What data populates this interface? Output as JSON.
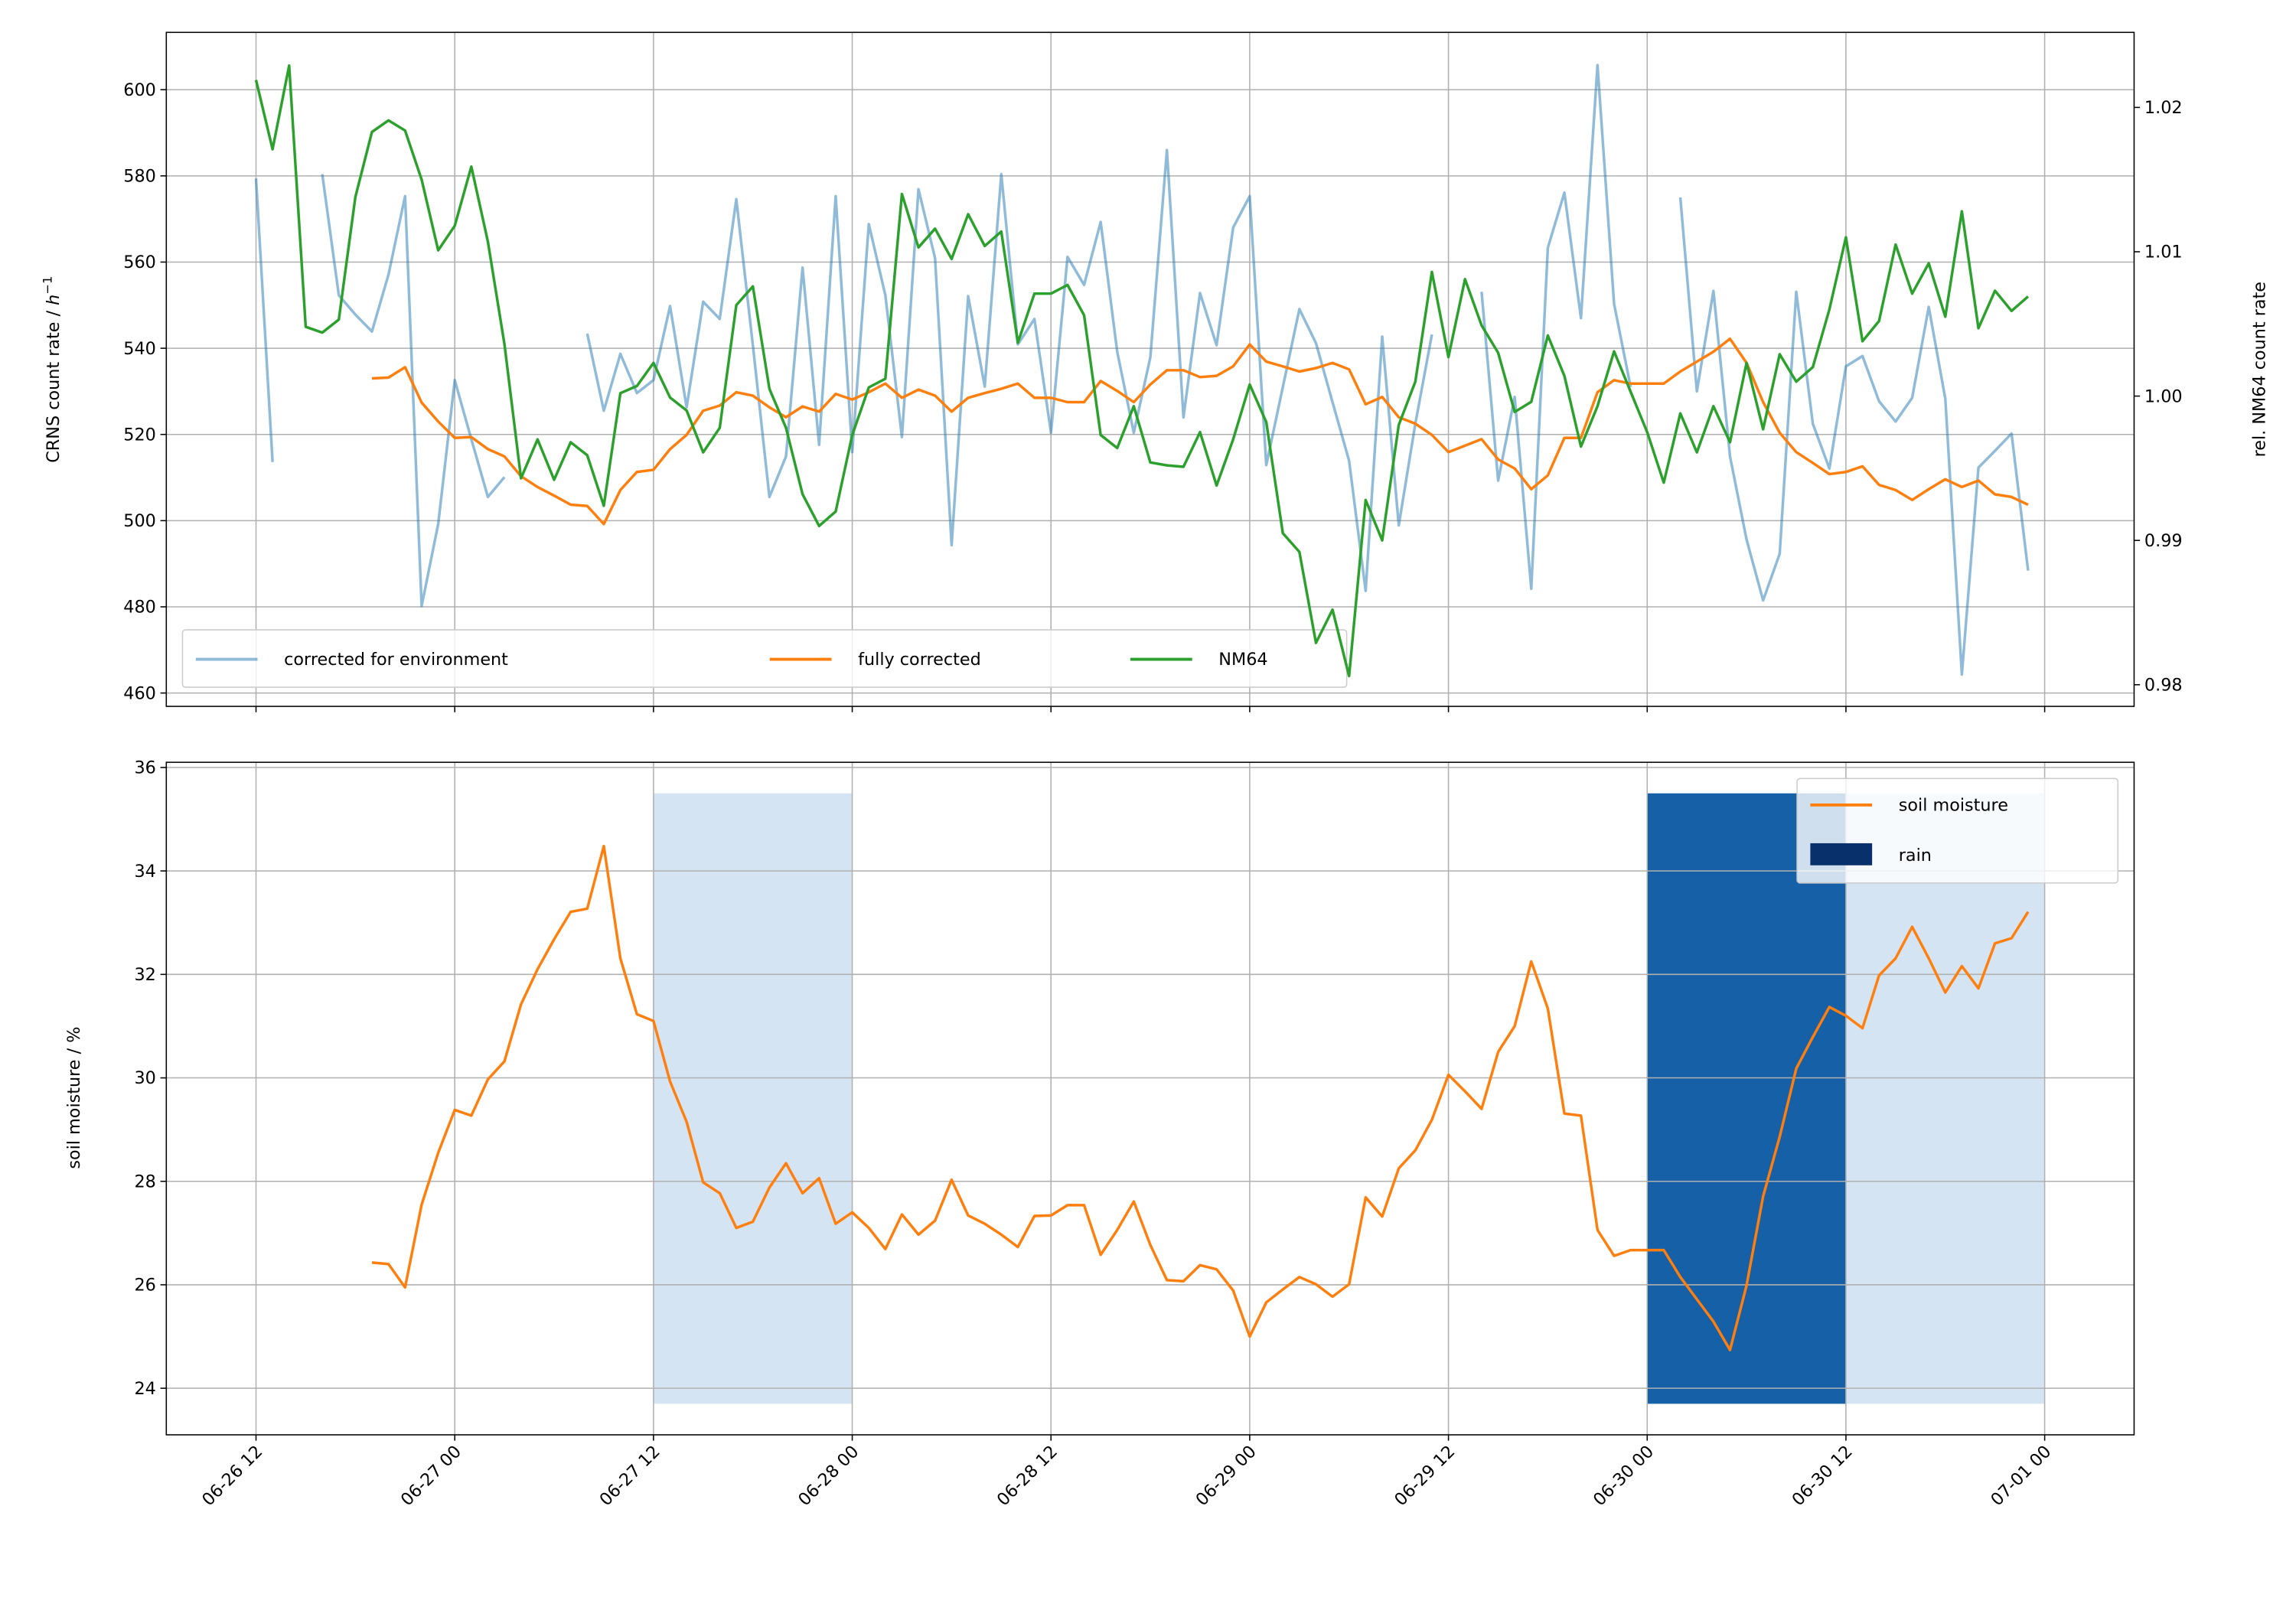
{
  "chart_data": [
    {
      "type": "line",
      "panel": "top",
      "ylabel_text": "CRNS count rate / ",
      "ylabel_unit": "h",
      "ylabel_exp": "−1",
      "y2label": "rel. NM64 count rate",
      "xlim": [
        "06-26 06:35",
        "07-01 05:24"
      ],
      "ylim": [
        456.9,
        613.3
      ],
      "y2lim": [
        0.9785,
        1.0252
      ],
      "grid": true,
      "legend_placement": "lower-left",
      "xticks": [
        "06-26 12",
        "06-27 00",
        "06-27 12",
        "06-28 00",
        "06-28 12",
        "06-29 00",
        "06-29 12",
        "06-30 00",
        "06-30 12",
        "07-01 00"
      ],
      "yticks": [
        460,
        480,
        500,
        520,
        540,
        560,
        580,
        600
      ],
      "y2ticks": [
        "0.98",
        "0.99",
        "1.00",
        "1.01",
        "1.02"
      ],
      "x": [
        "06-26 12:00",
        "06-26 13:00",
        "06-26 14:00",
        "06-26 15:00",
        "06-26 16:00",
        "06-26 17:00",
        "06-26 18:00",
        "06-26 19:00",
        "06-26 20:00",
        "06-26 21:00",
        "06-26 22:00",
        "06-26 23:00",
        "06-27 00:00",
        "06-27 01:00",
        "06-27 02:00",
        "06-27 03:00",
        "06-27 04:00",
        "06-27 05:00",
        "06-27 06:00",
        "06-27 07:00",
        "06-27 08:00",
        "06-27 09:00",
        "06-27 10:00",
        "06-27 11:00",
        "06-27 12:00",
        "06-27 13:00",
        "06-27 14:00",
        "06-27 15:00",
        "06-27 16:00",
        "06-27 17:00",
        "06-27 18:00",
        "06-27 19:00",
        "06-27 20:00",
        "06-27 21:00",
        "06-27 22:00",
        "06-27 23:00",
        "06-28 00:00",
        "06-28 01:00",
        "06-28 02:00",
        "06-28 03:00",
        "06-28 04:00",
        "06-28 05:00",
        "06-28 06:00",
        "06-28 07:00",
        "06-28 08:00",
        "06-28 09:00",
        "06-28 10:00",
        "06-28 11:00",
        "06-28 12:00",
        "06-28 13:00",
        "06-28 14:00",
        "06-28 15:00",
        "06-28 16:00",
        "06-28 17:00",
        "06-28 18:00",
        "06-28 19:00",
        "06-28 20:00",
        "06-28 21:00",
        "06-28 22:00",
        "06-28 23:00",
        "06-29 00:00",
        "06-29 01:00",
        "06-29 02:00",
        "06-29 03:00",
        "06-29 04:00",
        "06-29 05:00",
        "06-29 06:00",
        "06-29 07:00",
        "06-29 08:00",
        "06-29 09:00",
        "06-29 10:00",
        "06-29 11:00",
        "06-29 12:00",
        "06-29 13:00",
        "06-29 14:00",
        "06-29 15:00",
        "06-29 16:00",
        "06-29 17:00",
        "06-29 18:00",
        "06-29 19:00",
        "06-29 20:00",
        "06-29 21:00",
        "06-29 22:00",
        "06-29 23:00",
        "06-30 00:00",
        "06-30 01:00",
        "06-30 02:00",
        "06-30 03:00",
        "06-30 04:00",
        "06-30 05:00",
        "06-30 06:00",
        "06-30 07:00",
        "06-30 08:00",
        "06-30 09:00",
        "06-30 10:00",
        "06-30 11:00",
        "06-30 12:00",
        "06-30 13:00",
        "06-30 14:00",
        "06-30 15:00",
        "06-30 16:00",
        "06-30 17:00",
        "06-30 18:00",
        "06-30 19:00",
        "06-30 20:00",
        "06-30 21:00",
        "06-30 22:00",
        "06-30 23:00"
      ],
      "series": [
        {
          "name": "corrected for environment",
          "axis": "left",
          "color": "#1f77b4",
          "opacity": 0.5,
          "values": [
            579.4,
            513.6,
            null,
            null,
            580.4,
            552.3,
            547.8,
            543.9,
            557.1,
            575.3,
            480.2,
            499.2,
            532.6,
            518.9,
            505.5,
            510.1,
            null,
            null,
            null,
            null,
            543.4,
            525.5,
            538.7,
            529.6,
            532.6,
            549.8,
            526.3,
            550.8,
            546.8,
            574.6,
            540.7,
            505.5,
            514.9,
            558.7,
            517.6,
            575.3,
            515.9,
            568.8,
            552.3,
            519.4,
            576.9,
            560.9,
            494.3,
            552.1,
            531.1,
            580.4,
            540.9,
            546.8,
            520.4,
            561.2,
            554.7,
            569.3,
            539.2,
            520.4,
            537.9,
            586.0,
            524.0,
            552.8,
            540.7,
            568.0,
            575.3,
            512.9,
            531.0,
            549.1,
            541.2,
            527.5,
            513.9,
            483.7,
            542.7,
            498.9,
            522.5,
            543.2,
            null,
            null,
            553.1,
            509.3,
            528.7,
            484.2,
            563.3,
            576.1,
            547.0,
            605.7,
            550.3,
            531.0,
            null,
            null,
            575.0,
            530.0,
            553.3,
            514.9,
            495.6,
            481.5,
            492.3,
            553.1,
            522.5,
            512.1,
            535.8,
            538.2,
            527.7,
            523.0,
            528.5,
            549.6,
            528.3,
            464.3,
            512.3,
            516.2,
            520.2,
            488.4
          ]
        },
        {
          "name": "fully corrected",
          "axis": "left",
          "color": "#ff7f0e",
          "opacity": 1,
          "values": [
            null,
            null,
            null,
            null,
            null,
            null,
            null,
            533.0,
            533.2,
            535.6,
            527.4,
            523.0,
            519.2,
            519.4,
            516.6,
            514.9,
            510.3,
            507.8,
            505.8,
            503.7,
            503.4,
            499.2,
            507.1,
            511.3,
            511.8,
            516.6,
            519.9,
            525.5,
            526.7,
            529.8,
            529.0,
            526.3,
            524.0,
            526.5,
            525.3,
            529.4,
            528.1,
            529.8,
            531.8,
            528.5,
            530.4,
            529.0,
            525.3,
            528.5,
            529.6,
            530.6,
            531.8,
            528.5,
            528.5,
            527.5,
            527.5,
            532.4,
            530.1,
            527.5,
            531.6,
            534.9,
            534.9,
            533.3,
            533.6,
            535.8,
            540.9,
            536.9,
            535.8,
            534.6,
            535.4,
            536.6,
            535.1,
            527.0,
            528.7,
            524.0,
            522.5,
            519.9,
            515.9,
            517.4,
            518.9,
            514.2,
            512.1,
            507.3,
            510.5,
            519.2,
            519.2,
            529.8,
            532.6,
            531.8,
            531.8,
            531.8,
            534.6,
            536.9,
            539.2,
            542.2,
            536.6,
            527.5,
            520.4,
            515.9,
            513.4,
            510.8,
            511.3,
            512.6,
            508.3,
            507.1,
            504.8,
            507.3,
            509.6,
            507.8,
            509.3,
            506.1,
            505.5,
            503.7
          ]
        },
        {
          "name": "NM64",
          "axis": "right",
          "color": "#2ca02c",
          "opacity": 1,
          "values": [
            1.0219,
            1.0171,
            1.0229,
            1.0048,
            1.0044,
            1.0053,
            1.0138,
            1.0183,
            1.0191,
            1.0184,
            1.015,
            1.0101,
            1.0118,
            1.0159,
            1.0107,
            1.0036,
            0.9943,
            0.997,
            0.9942,
            0.9968,
            0.9959,
            0.9924,
            1.0002,
            1.0007,
            1.0023,
            0.9999,
            0.999,
            0.9961,
            0.9978,
            1.0063,
            1.0076,
            1.0005,
            0.9978,
            0.9932,
            0.991,
            0.992,
            0.9973,
            1.0006,
            1.0012,
            1.014,
            1.0103,
            1.0116,
            1.0095,
            1.0126,
            1.0104,
            1.0114,
            1.0037,
            1.0071,
            1.0071,
            1.0077,
            1.0056,
            0.9973,
            0.9964,
            0.9993,
            0.9954,
            0.9952,
            0.9951,
            0.9975,
            0.9938,
            0.997,
            1.0008,
            0.9982,
            0.9905,
            0.9892,
            0.9829,
            0.9852,
            0.9806,
            0.9928,
            0.99,
            0.998,
            1.001,
            1.0086,
            1.0027,
            1.0081,
            1.0049,
            1.003,
            0.9989,
            0.9996,
            1.0042,
            1.0014,
            0.9965,
            0.9993,
            1.0031,
            1.0003,
            0.9975,
            0.994,
            0.9988,
            0.9961,
            0.9993,
            0.9968,
            1.0023,
            0.9977,
            1.0029,
            1.001,
            1.002,
            1.006,
            1.011,
            1.0038,
            1.0052,
            1.0105,
            1.0071,
            1.0092,
            1.0055,
            1.0128,
            1.0047,
            1.0073,
            1.0059,
            1.0069
          ]
        }
      ]
    },
    {
      "type": "line",
      "panel": "bottom",
      "ylabel": "soil moisture / %",
      "xlim": [
        "06-26 06:35",
        "07-01 05:24"
      ],
      "ylim": [
        23.1,
        36.1
      ],
      "grid": true,
      "legend_placement": "upper-right",
      "xticks": [
        "06-26 12",
        "06-27 00",
        "06-27 12",
        "06-28 00",
        "06-28 12",
        "06-29 00",
        "06-29 12",
        "06-30 00",
        "06-30 12",
        "07-01 00"
      ],
      "yticks": [
        24,
        26,
        28,
        30,
        32,
        34,
        36
      ],
      "series": [
        {
          "name": "soil moisture",
          "color": "#ff7f0e",
          "values": [
            null,
            null,
            null,
            null,
            null,
            null,
            null,
            26.43,
            26.4,
            25.95,
            27.55,
            28.55,
            29.38,
            29.27,
            29.97,
            30.32,
            31.42,
            32.1,
            32.68,
            33.21,
            33.27,
            34.48,
            32.31,
            31.23,
            31.1,
            29.93,
            29.15,
            27.98,
            27.77,
            27.1,
            27.22,
            27.88,
            28.35,
            27.77,
            28.06,
            27.18,
            27.4,
            27.1,
            26.69,
            27.36,
            26.97,
            27.24,
            28.03,
            27.34,
            27.18,
            26.97,
            26.73,
            27.33,
            27.34,
            27.54,
            27.54,
            26.58,
            27.06,
            27.61,
            26.77,
            26.09,
            26.07,
            26.38,
            26.3,
            25.89,
            25.0,
            25.66,
            25.91,
            26.15,
            26.01,
            25.77,
            26.01,
            27.69,
            27.32,
            28.25,
            28.6,
            29.19,
            30.06,
            29.74,
            29.4,
            30.5,
            31.0,
            32.25,
            31.34,
            29.31,
            29.27,
            27.06,
            26.56,
            26.67,
            26.67,
            26.67,
            26.15,
            25.72,
            25.29,
            24.74,
            25.99,
            27.71,
            28.86,
            30.18,
            30.79,
            31.37,
            31.2,
            30.96,
            31.98,
            32.31,
            32.92,
            32.31,
            31.65,
            32.16,
            31.73,
            32.6,
            32.7,
            33.21
          ]
        }
      ],
      "rain": {
        "name": "rain",
        "legend_color": "#08306b",
        "y_range": [
          23.7,
          35.5
        ],
        "spans": [
          {
            "start": "06-27 12:00",
            "end": "06-28 00:00",
            "color": "#d4e4f2"
          },
          {
            "start": "06-30 00:00",
            "end": "06-30 12:00",
            "color": "#1660a8"
          },
          {
            "start": "06-30 12:00",
            "end": "07-01 00:00",
            "color": "#d4e4f2"
          }
        ]
      }
    }
  ]
}
